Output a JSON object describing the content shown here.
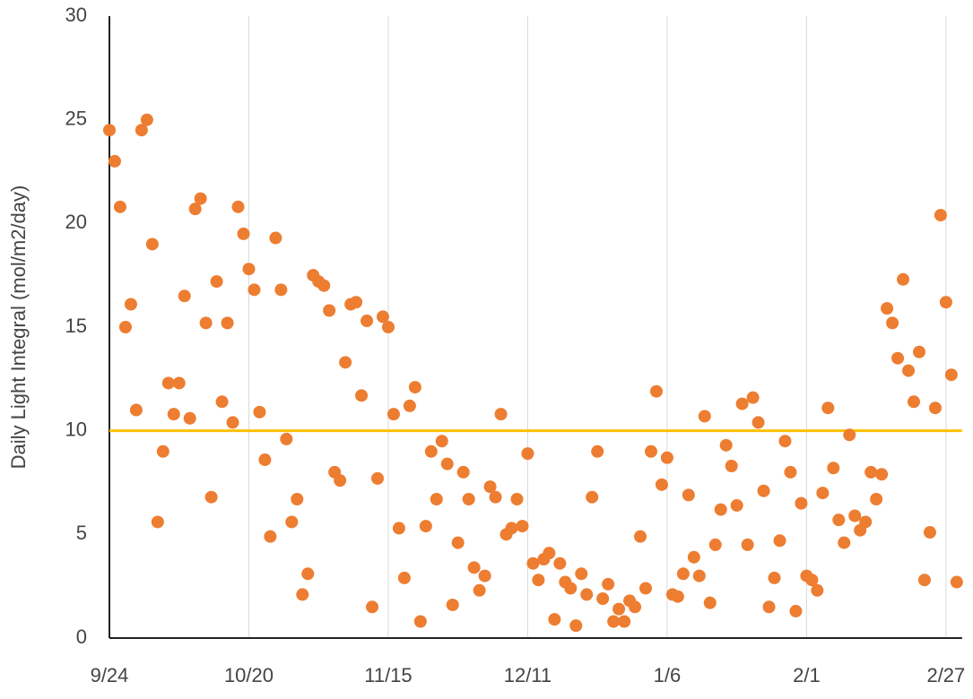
{
  "chart_data": {
    "type": "scatter",
    "y_label": "Daily Light Integral (mol/m2/day)",
    "x": [
      "9/24",
      "9/25",
      "9/26",
      "9/27",
      "9/28",
      "9/29",
      "9/30",
      "10/1",
      "10/2",
      "10/3",
      "10/4",
      "10/5",
      "10/6",
      "10/7",
      "10/8",
      "10/9",
      "10/10",
      "10/11",
      "10/12",
      "10/13",
      "10/14",
      "10/15",
      "10/16",
      "10/17",
      "10/18",
      "10/19",
      "10/20",
      "10/21",
      "10/22",
      "10/23",
      "10/24",
      "10/25",
      "10/26",
      "10/27",
      "10/28",
      "10/29",
      "10/30",
      "10/31",
      "11/1",
      "11/2",
      "11/3",
      "11/4",
      "11/5",
      "11/6",
      "11/7",
      "11/8",
      "11/9",
      "11/10",
      "11/11",
      "11/12",
      "11/13",
      "11/14",
      "11/15",
      "11/16",
      "11/17",
      "11/18",
      "11/19",
      "11/20",
      "11/21",
      "11/22",
      "11/23",
      "11/24",
      "11/25",
      "11/26",
      "11/27",
      "11/28",
      "11/29",
      "11/30",
      "12/1",
      "12/2",
      "12/3",
      "12/4",
      "12/5",
      "12/6",
      "12/7",
      "12/8",
      "12/9",
      "12/10",
      "12/11",
      "12/12",
      "12/13",
      "12/14",
      "12/15",
      "12/16",
      "12/17",
      "12/18",
      "12/19",
      "12/20",
      "12/21",
      "12/22",
      "12/23",
      "12/24",
      "12/25",
      "12/26",
      "12/27",
      "12/28",
      "12/29",
      "12/30",
      "12/31",
      "1/1",
      "1/2",
      "1/3",
      "1/4",
      "1/5",
      "1/6",
      "1/7",
      "1/8",
      "1/9",
      "1/10",
      "1/11",
      "1/12",
      "1/13",
      "1/14",
      "1/15",
      "1/16",
      "1/17",
      "1/18",
      "1/19",
      "1/20",
      "1/21",
      "1/22",
      "1/23",
      "1/24",
      "1/25",
      "1/26",
      "1/27",
      "1/28",
      "1/29",
      "1/30",
      "1/31",
      "2/1",
      "2/2",
      "2/3",
      "2/4",
      "2/5",
      "2/6",
      "2/7",
      "2/8",
      "2/9",
      "2/10",
      "2/11",
      "2/12",
      "2/13",
      "2/14",
      "2/15",
      "2/16",
      "2/17",
      "2/18",
      "2/19",
      "2/20",
      "2/21",
      "2/22",
      "2/23",
      "2/24",
      "2/25",
      "2/26",
      "2/27",
      "2/28",
      "3/1"
    ],
    "values": [
      24.5,
      23.0,
      20.8,
      15.0,
      16.1,
      11.0,
      24.5,
      25.0,
      19.0,
      5.6,
      9.0,
      12.3,
      10.8,
      12.3,
      16.5,
      10.6,
      20.7,
      21.2,
      15.2,
      6.8,
      17.2,
      11.4,
      15.2,
      10.4,
      20.8,
      19.5,
      17.8,
      16.8,
      10.9,
      8.6,
      4.9,
      19.3,
      16.8,
      9.6,
      5.6,
      6.7,
      2.1,
      3.1,
      17.5,
      17.2,
      17.0,
      15.8,
      8.0,
      7.6,
      13.3,
      16.1,
      16.2,
      11.7,
      15.3,
      1.5,
      7.7,
      15.5,
      15.0,
      10.8,
      5.3,
      2.9,
      11.2,
      12.1,
      0.8,
      5.4,
      9.0,
      6.7,
      9.5,
      8.4,
      1.6,
      4.6,
      8.0,
      6.7,
      3.4,
      2.3,
      3.0,
      7.3,
      6.8,
      10.8,
      5.0,
      5.3,
      6.7,
      5.4,
      8.9,
      3.6,
      2.8,
      3.8,
      4.1,
      0.9,
      3.6,
      2.7,
      2.4,
      0.6,
      3.1,
      2.1,
      6.8,
      9.0,
      1.9,
      2.6,
      0.8,
      1.4,
      0.8,
      1.8,
      1.5,
      4.9,
      2.4,
      9.0,
      11.9,
      7.4,
      8.7,
      2.1,
      2.0,
      3.1,
      6.9,
      3.9,
      3.0,
      10.7,
      1.7,
      4.5,
      6.2,
      9.3,
      8.3,
      6.4,
      11.3,
      4.5,
      11.6,
      10.4,
      7.1,
      1.5,
      2.9,
      4.7,
      9.5,
      8.0,
      1.3,
      6.5,
      3.0,
      2.8,
      2.3,
      7.0,
      11.1,
      8.2,
      5.7,
      4.6,
      9.8,
      5.9,
      5.2,
      5.6,
      8.0,
      6.7,
      7.9,
      15.9,
      15.2,
      13.5,
      17.3,
      12.9,
      11.4,
      13.8,
      2.8,
      5.1,
      11.1,
      20.4,
      16.2,
      12.7,
      2.7
    ],
    "color": "#ed7d31",
    "reference_line": 10,
    "reference_color": "#ffc000",
    "xlim": [
      "9/24",
      "3/2"
    ],
    "xticks": [
      "9/24",
      "10/20",
      "11/15",
      "12/11",
      "1/6",
      "2/1",
      "2/27"
    ],
    "ylim": [
      0,
      30
    ],
    "yticks": [
      0,
      5,
      10,
      15,
      20,
      25,
      30
    ],
    "grid": true
  }
}
